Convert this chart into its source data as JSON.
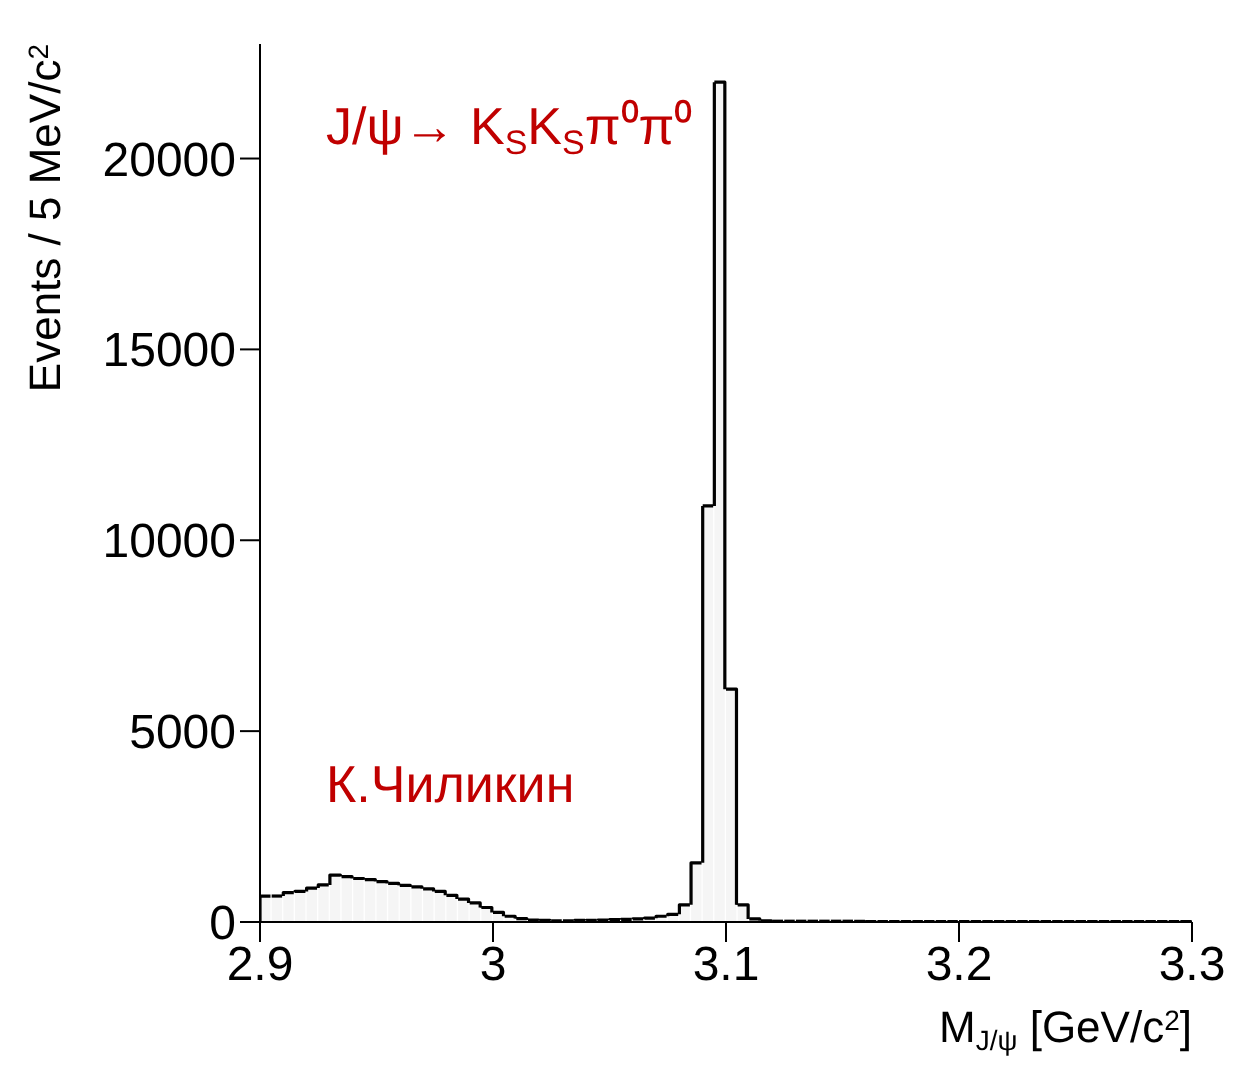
{
  "chart_data": {
    "type": "histogram",
    "xlabel": "M$_{J/ψ}$ [GeV/c$^{2}$]",
    "ylabel": "Events / 5 MeV/c$^{2}$",
    "annotations": [
      "J/ψ→ K$_{S}$K$_{S}$π⁰π⁰",
      "К.Чиликин"
    ],
    "color": "#000000",
    "bins": [
      2.9,
      2.905,
      2.91,
      2.915,
      2.92,
      2.925,
      2.93,
      2.935,
      2.94,
      2.945,
      2.95,
      2.955,
      2.96,
      2.965,
      2.97,
      2.975,
      2.98,
      2.985,
      2.99,
      2.995,
      3.0,
      3.005,
      3.01,
      3.015,
      3.02,
      3.025,
      3.03,
      3.035,
      3.04,
      3.045,
      3.05,
      3.055,
      3.06,
      3.065,
      3.07,
      3.075,
      3.08,
      3.085,
      3.09,
      3.095,
      3.1,
      3.105,
      3.11,
      3.115,
      3.12,
      3.125,
      3.13,
      3.135,
      3.14,
      3.145,
      3.15,
      3.155,
      3.16,
      3.165,
      3.17,
      3.175,
      3.18,
      3.185,
      3.19,
      3.195,
      3.2,
      3.205,
      3.21,
      3.215,
      3.22,
      3.225,
      3.23,
      3.235,
      3.24,
      3.245,
      3.25,
      3.255,
      3.26,
      3.265,
      3.27,
      3.275,
      3.28,
      3.285,
      3.29,
      3.295,
      3.3
    ],
    "values": [
      680,
      680,
      770,
      800,
      890,
      970,
      1230,
      1190,
      1140,
      1110,
      1060,
      1010,
      960,
      920,
      870,
      800,
      700,
      600,
      500,
      380,
      250,
      150,
      90,
      50,
      40,
      30,
      30,
      40,
      40,
      50,
      60,
      70,
      80,
      100,
      150,
      200,
      450,
      1550,
      10900,
      22000,
      6100,
      450,
      80,
      30,
      20,
      20,
      20,
      20,
      20,
      20,
      20,
      20,
      10,
      10,
      10,
      10,
      10,
      10,
      10,
      10,
      10,
      10,
      10,
      10,
      10,
      10,
      10,
      10,
      10,
      10,
      10,
      10,
      10,
      10,
      10,
      10,
      10,
      10,
      10,
      10
    ],
    "xlim": [
      2.9,
      3.3
    ],
    "xticks": [
      2.9,
      3,
      3.1,
      3.2,
      3.3
    ],
    "ylim": [
      0,
      23000
    ],
    "yticks": [
      0,
      5000,
      10000,
      15000,
      20000
    ],
    "grid": false,
    "legend": false
  }
}
